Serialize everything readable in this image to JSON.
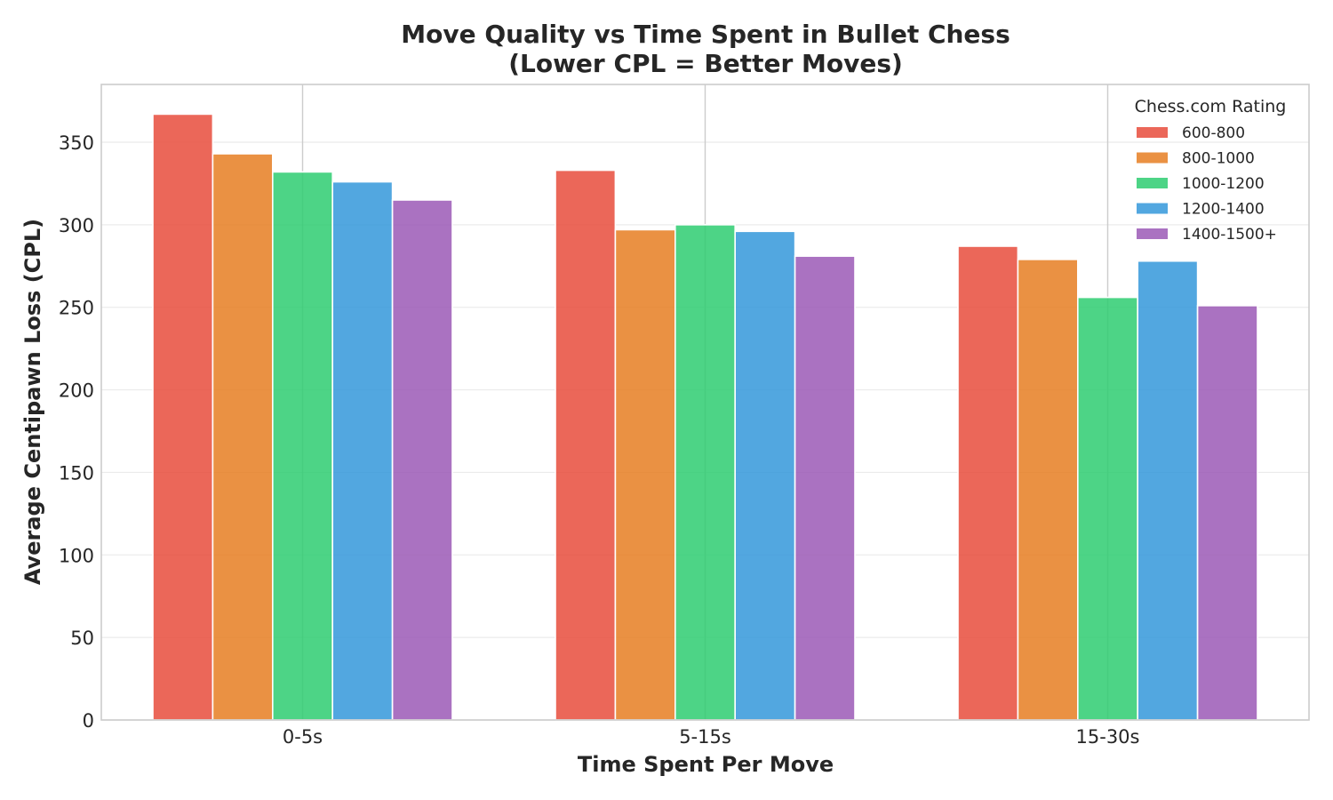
{
  "chart_data": {
    "type": "bar",
    "title": "Move Quality vs Time Spent in Bullet Chess",
    "subtitle": "(Lower CPL = Better Moves)",
    "xlabel": "Time Spent Per Move",
    "ylabel": "Average Centipawn Loss (CPL)",
    "categories": [
      "0-5s",
      "5-15s",
      "15-30s"
    ],
    "ylim": [
      0,
      385
    ],
    "yticks": [
      0,
      50,
      100,
      150,
      200,
      250,
      300,
      350
    ],
    "grid": "y",
    "legend": {
      "title": "Chess.com Rating",
      "position": "top-right"
    },
    "series": [
      {
        "name": "600-800",
        "color": "#e74c3c",
        "values": [
          367,
          333,
          287
        ]
      },
      {
        "name": "800-1000",
        "color": "#e67e22",
        "values": [
          343,
          297,
          279
        ]
      },
      {
        "name": "1000-1200",
        "color": "#2ecc71",
        "values": [
          332,
          300,
          256
        ]
      },
      {
        "name": "1200-1400",
        "color": "#3498db",
        "values": [
          326,
          296,
          278
        ]
      },
      {
        "name": "1400-1500+",
        "color": "#9b59b6",
        "values": [
          315,
          281,
          251
        ]
      }
    ]
  }
}
